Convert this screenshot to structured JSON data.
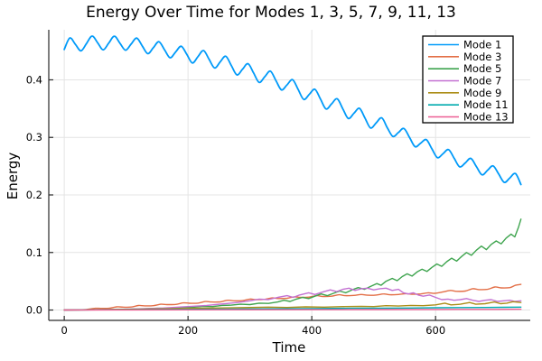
{
  "title": "Energy Over Time for Modes 1, 3, 5, 7, 9, 11, 13",
  "chart_data": {
    "type": "line",
    "title": "Energy Over Time for Modes 1, 3, 5, 7, 9, 11, 13",
    "xlabel": "Time",
    "ylabel": "Energy",
    "xlim": [
      -25,
      753
    ],
    "ylim": [
      -0.018,
      0.487
    ],
    "grid": true,
    "xticks": {
      "values": [
        0,
        200,
        400,
        600
      ],
      "labels": [
        "0",
        "200",
        "400",
        "600"
      ]
    },
    "yticks": {
      "values": [
        0.0,
        0.1,
        0.2,
        0.3,
        0.4
      ],
      "labels": [
        "0.0",
        "0.1",
        "0.2",
        "0.3",
        "0.4"
      ]
    },
    "legend": {
      "position": "top-right",
      "border_color": "#000000",
      "background": "#ffffff"
    },
    "colors": {
      "axis": "#2a2a2a",
      "grid": "#e4e4e4",
      "text": "#000000",
      "background": "#ffffff"
    },
    "series": [
      {
        "name": "Mode 1",
        "color": "#009AF9",
        "line_width": 1.8,
        "smooth": true,
        "x": [
          0,
          9,
          18,
          27,
          36,
          45,
          54,
          63,
          72,
          81,
          90,
          99,
          108,
          117,
          126,
          135,
          144,
          153,
          162,
          171,
          180,
          189,
          198,
          207,
          216,
          225,
          234,
          243,
          252,
          261,
          270,
          279,
          288,
          297,
          306,
          315,
          324,
          333,
          342,
          351,
          360,
          369,
          378,
          387,
          396,
          405,
          414,
          423,
          432,
          441,
          450,
          459,
          468,
          477,
          486,
          495,
          504,
          513,
          522,
          531,
          540,
          549,
          558,
          567,
          576,
          585,
          594,
          603,
          612,
          621,
          630,
          639,
          648,
          657,
          666,
          675,
          684,
          693,
          702,
          711,
          720,
          729,
          738
        ],
        "y": [
          0.4528,
          0.4728,
          0.4616,
          0.4504,
          0.4632,
          0.4761,
          0.4644,
          0.4522,
          0.4641,
          0.4759,
          0.4637,
          0.4515,
          0.4621,
          0.4726,
          0.4591,
          0.4456,
          0.456,
          0.4663,
          0.4524,
          0.4384,
          0.4484,
          0.4584,
          0.4444,
          0.4293,
          0.4402,
          0.451,
          0.4358,
          0.4207,
          0.4313,
          0.441,
          0.4248,
          0.4086,
          0.4183,
          0.4281,
          0.4118,
          0.3956,
          0.4054,
          0.4151,
          0.3989,
          0.3825,
          0.3914,
          0.4003,
          0.3831,
          0.366,
          0.3748,
          0.3837,
          0.3666,
          0.3494,
          0.3583,
          0.3671,
          0.35,
          0.3329,
          0.3417,
          0.3506,
          0.3334,
          0.3163,
          0.3252,
          0.334,
          0.3169,
          0.3017,
          0.3086,
          0.3155,
          0.2997,
          0.2838,
          0.29,
          0.2961,
          0.2802,
          0.2647,
          0.2717,
          0.2788,
          0.2638,
          0.2488,
          0.2557,
          0.2635,
          0.2492,
          0.235,
          0.2428,
          0.2505,
          0.2363,
          0.2219,
          0.2295,
          0.2371,
          0.218
        ]
      },
      {
        "name": "Mode 3",
        "color": "#E36F47",
        "line_width": 1.4,
        "smooth": true,
        "x": [
          0,
          20,
          36,
          50,
          60,
          72,
          85,
          95,
          108,
          120,
          130,
          144,
          156,
          166,
          180,
          192,
          202,
          216,
          228,
          238,
          252,
          264,
          274,
          288,
          300,
          310,
          324,
          336,
          346,
          360,
          372,
          382,
          396,
          408,
          418,
          432,
          444,
          454,
          468,
          480,
          490,
          504,
          516,
          526,
          540,
          552,
          562,
          576,
          588,
          598,
          612,
          624,
          634,
          648,
          660,
          670,
          684,
          696,
          706,
          720,
          729,
          738
        ],
        "y": [
          0.0,
          0.0005,
          0.001,
          0.003,
          0.0028,
          0.003,
          0.0055,
          0.005,
          0.0052,
          0.0078,
          0.0072,
          0.0075,
          0.01,
          0.0095,
          0.0098,
          0.0125,
          0.0118,
          0.012,
          0.0148,
          0.014,
          0.0142,
          0.017,
          0.016,
          0.0163,
          0.019,
          0.018,
          0.0185,
          0.021,
          0.02,
          0.0205,
          0.023,
          0.022,
          0.0225,
          0.025,
          0.0235,
          0.024,
          0.0265,
          0.025,
          0.0255,
          0.027,
          0.0258,
          0.026,
          0.028,
          0.0265,
          0.027,
          0.0285,
          0.0275,
          0.028,
          0.03,
          0.029,
          0.0315,
          0.034,
          0.0325,
          0.033,
          0.037,
          0.0355,
          0.036,
          0.04,
          0.0385,
          0.039,
          0.043,
          0.0445
        ]
      },
      {
        "name": "Mode 5",
        "color": "#3EA44E",
        "line_width": 1.4,
        "smooth": false,
        "x": [
          0,
          30,
          60,
          90,
          120,
          150,
          170,
          190,
          210,
          225,
          240,
          255,
          270,
          285,
          300,
          315,
          330,
          345,
          355,
          365,
          375,
          385,
          395,
          405,
          415,
          425,
          435,
          445,
          455,
          465,
          475,
          485,
          495,
          505,
          512,
          520,
          530,
          538,
          546,
          554,
          562,
          570,
          578,
          586,
          594,
          602,
          610,
          618,
          626,
          634,
          642,
          650,
          658,
          666,
          674,
          682,
          690,
          698,
          706,
          714,
          722,
          728,
          734,
          738
        ],
        "y": [
          0.0,
          0.0002,
          0.0005,
          0.001,
          0.0018,
          0.003,
          0.0028,
          0.0045,
          0.005,
          0.0065,
          0.006,
          0.008,
          0.0085,
          0.01,
          0.0095,
          0.012,
          0.0115,
          0.014,
          0.017,
          0.015,
          0.019,
          0.022,
          0.02,
          0.024,
          0.028,
          0.025,
          0.029,
          0.033,
          0.03,
          0.035,
          0.039,
          0.036,
          0.041,
          0.046,
          0.043,
          0.05,
          0.055,
          0.051,
          0.058,
          0.063,
          0.059,
          0.066,
          0.071,
          0.067,
          0.074,
          0.08,
          0.076,
          0.084,
          0.09,
          0.085,
          0.093,
          0.1,
          0.095,
          0.104,
          0.111,
          0.105,
          0.114,
          0.12,
          0.115,
          0.125,
          0.132,
          0.127,
          0.144,
          0.158
        ]
      },
      {
        "name": "Mode 7",
        "color": "#C371D2",
        "line_width": 1.4,
        "smooth": false,
        "x": [
          0,
          40,
          80,
          120,
          160,
          200,
          230,
          260,
          280,
          300,
          315,
          330,
          345,
          360,
          370,
          380,
          395,
          405,
          420,
          430,
          440,
          450,
          460,
          470,
          480,
          490,
          500,
          510,
          520,
          530,
          540,
          548,
          556,
          564,
          572,
          580,
          590,
          600,
          610,
          620,
          630,
          640,
          650,
          660,
          670,
          680,
          690,
          700,
          710,
          720,
          728,
          738
        ],
        "y": [
          0.0,
          0.0005,
          0.0012,
          0.002,
          0.0035,
          0.006,
          0.008,
          0.011,
          0.013,
          0.016,
          0.019,
          0.018,
          0.022,
          0.025,
          0.022,
          0.026,
          0.03,
          0.027,
          0.032,
          0.035,
          0.032,
          0.036,
          0.038,
          0.034,
          0.037,
          0.038,
          0.035,
          0.037,
          0.038,
          0.034,
          0.036,
          0.03,
          0.028,
          0.03,
          0.026,
          0.024,
          0.026,
          0.022,
          0.018,
          0.019,
          0.017,
          0.018,
          0.02,
          0.017,
          0.015,
          0.017,
          0.018,
          0.015,
          0.016,
          0.017,
          0.015,
          0.016
        ]
      },
      {
        "name": "Mode 9",
        "color": "#AC8E18",
        "line_width": 1.4,
        "smooth": false,
        "x": [
          0,
          60,
          120,
          180,
          240,
          300,
          330,
          360,
          390,
          420,
          450,
          480,
          500,
          520,
          540,
          560,
          580,
          600,
          615,
          625,
          640,
          655,
          665,
          680,
          695,
          705,
          715,
          725,
          738
        ],
        "y": [
          0.0,
          0.0008,
          0.0015,
          0.0025,
          0.0035,
          0.0045,
          0.005,
          0.0045,
          0.0055,
          0.005,
          0.006,
          0.0065,
          0.006,
          0.0075,
          0.007,
          0.008,
          0.0075,
          0.009,
          0.012,
          0.009,
          0.01,
          0.013,
          0.01,
          0.011,
          0.014,
          0.011,
          0.012,
          0.0145,
          0.013
        ]
      },
      {
        "name": "Mode 11",
        "color": "#00AAAE",
        "line_width": 1.4,
        "smooth": false,
        "x": [
          0,
          80,
          160,
          240,
          320,
          400,
          460,
          520,
          560,
          600,
          640,
          680,
          710,
          738
        ],
        "y": [
          0.0,
          0.0005,
          0.001,
          0.0015,
          0.002,
          0.0025,
          0.003,
          0.0032,
          0.0035,
          0.004,
          0.0042,
          0.0045,
          0.0048,
          0.005
        ]
      },
      {
        "name": "Mode 13",
        "color": "#ED5E93",
        "line_width": 1.4,
        "smooth": false,
        "x": [
          0,
          100,
          200,
          300,
          400,
          500,
          600,
          700,
          738
        ],
        "y": [
          0.0,
          0.0002,
          0.0003,
          0.0005,
          0.0006,
          0.0008,
          0.001,
          0.0012,
          0.0015
        ]
      }
    ]
  }
}
